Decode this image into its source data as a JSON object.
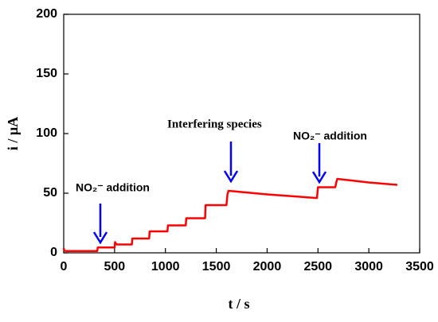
{
  "chart_data": {
    "type": "line",
    "x_label": "t / s",
    "y_label": "i / µA",
    "annotations": [
      "NO₂⁻ addition",
      "Interfering species",
      "NO₂⁻ addition"
    ],
    "x": [
      0,
      5,
      20,
      330,
      335,
      500,
      505,
      520,
      670,
      675,
      840,
      845,
      1020,
      1025,
      1200,
      1205,
      1390,
      1395,
      1600,
      1610,
      1620,
      2000,
      2480,
      2490,
      2500,
      2670,
      2680,
      2690,
      3000,
      3280
    ],
    "series": [
      {
        "color": "#ff0000",
        "values": [
          4,
          2,
          1.5,
          1.5,
          4.5,
          4.5,
          9,
          7,
          7,
          12,
          12,
          18,
          18,
          23,
          23,
          29,
          29,
          40,
          40,
          49,
          52,
          49,
          46,
          46,
          55,
          55,
          59,
          62,
          59,
          57
        ]
      }
    ],
    "xlim": [
      0,
      3500
    ],
    "xticks": [
      0,
      500,
      1000,
      1500,
      2000,
      2500,
      3000,
      3500
    ],
    "ylim": [
      0,
      200
    ],
    "yticks": [
      0,
      50,
      100,
      150,
      200
    ]
  }
}
